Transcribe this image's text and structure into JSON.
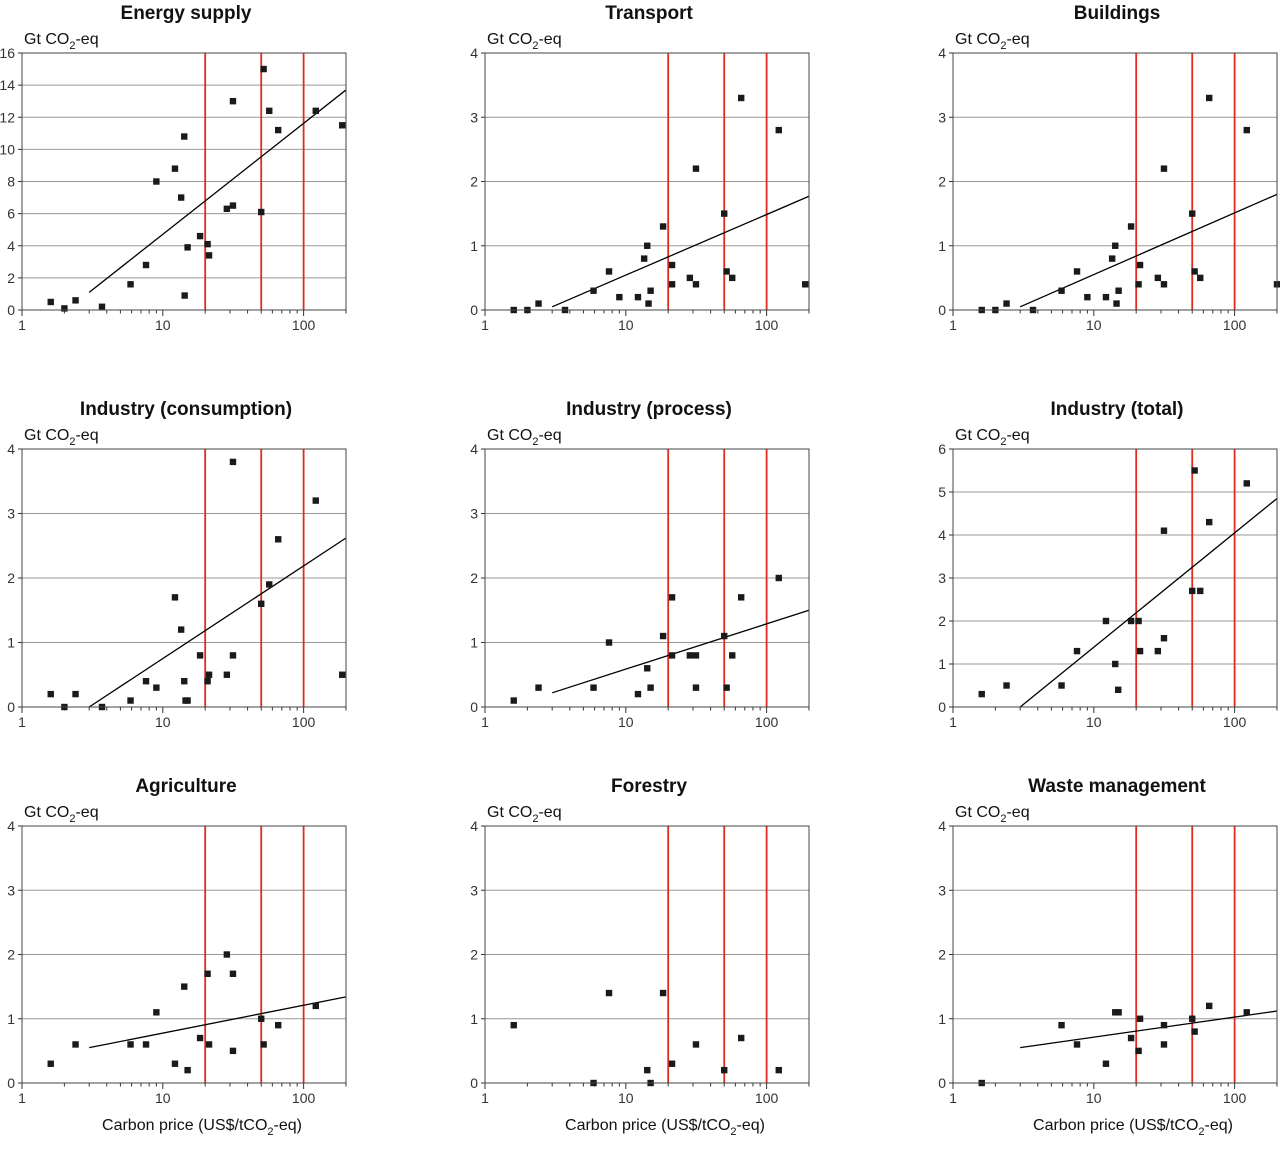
{
  "x_axis_label": "Carbon price (US$/tCO",
  "x_axis_label_sub": "2",
  "x_axis_label_end": "-eq)",
  "y_unit_prefix": "Gt CO",
  "y_unit_sub": "2",
  "y_unit_suffix": "-eq",
  "colors": {
    "reference_line": "#e02b20",
    "grid": "#999999",
    "point": "#1a1a1a",
    "trend": "#000000"
  },
  "chart_data": [
    {
      "type": "scatter",
      "title": "Energy supply",
      "xscale": "log",
      "xlim": [
        1,
        200
      ],
      "ylim": [
        0,
        16
      ],
      "yticks": [
        0,
        2,
        4,
        6,
        8,
        10,
        12,
        14,
        16
      ],
      "xticks": [
        1,
        10,
        100
      ],
      "reference_lines_x": [
        20,
        50,
        100
      ],
      "points": [
        [
          1.6,
          0.5
        ],
        [
          2.0,
          0.1
        ],
        [
          2.4,
          0.6
        ],
        [
          3.7,
          0.2
        ],
        [
          5.9,
          1.6
        ],
        [
          7.6,
          2.8
        ],
        [
          9.0,
          8.0
        ],
        [
          12.2,
          8.8
        ],
        [
          13.5,
          7.0
        ],
        [
          14.2,
          10.8
        ],
        [
          14.3,
          0.9
        ],
        [
          15.0,
          3.9
        ],
        [
          18.4,
          4.6
        ],
        [
          20.8,
          4.1
        ],
        [
          21.3,
          3.4
        ],
        [
          28.5,
          6.3
        ],
        [
          31.5,
          6.5
        ],
        [
          31.5,
          13.0
        ],
        [
          50,
          6.1
        ],
        [
          52,
          15.0
        ],
        [
          57,
          12.4
        ],
        [
          66,
          11.2
        ],
        [
          122,
          12.4
        ],
        [
          188,
          11.5
        ]
      ],
      "trend": [
        [
          3,
          1.1
        ],
        [
          200,
          13.7
        ]
      ]
    },
    {
      "type": "scatter",
      "title": "Transport",
      "xscale": "log",
      "xlim": [
        1,
        200
      ],
      "ylim": [
        0,
        4
      ],
      "yticks": [
        0,
        1,
        2,
        3,
        4
      ],
      "xticks": [
        1,
        10,
        100
      ],
      "reference_lines_x": [
        20,
        50,
        100
      ],
      "points": [
        [
          1.6,
          0
        ],
        [
          2.0,
          0
        ],
        [
          2.4,
          0.1
        ],
        [
          3.7,
          0
        ],
        [
          5.9,
          0.3
        ],
        [
          7.6,
          0.6
        ],
        [
          9.0,
          0.2
        ],
        [
          12.2,
          0.2
        ],
        [
          13.5,
          0.8
        ],
        [
          14.2,
          1.0
        ],
        [
          14.5,
          0.1
        ],
        [
          15.0,
          0.3
        ],
        [
          18.4,
          1.3
        ],
        [
          21.3,
          0.7
        ],
        [
          21.3,
          0.4
        ],
        [
          28.5,
          0.5
        ],
        [
          31.5,
          2.2
        ],
        [
          31.5,
          0.4
        ],
        [
          50,
          1.5
        ],
        [
          52,
          0.6
        ],
        [
          57,
          0.5
        ],
        [
          66,
          3.3
        ],
        [
          122,
          2.8
        ],
        [
          188,
          0.4
        ]
      ],
      "trend": [
        [
          3,
          0.05
        ],
        [
          200,
          1.77
        ]
      ]
    },
    {
      "type": "scatter",
      "title": "Buildings",
      "xscale": "log",
      "xlim": [
        1,
        200
      ],
      "ylim": [
        0,
        4
      ],
      "yticks": [
        0,
        1,
        2,
        3,
        4
      ],
      "xticks": [
        1,
        10,
        100
      ],
      "reference_lines_x": [
        20,
        50,
        100
      ],
      "points": [
        [
          1.6,
          0
        ],
        [
          2.0,
          0
        ],
        [
          2.4,
          0.1
        ],
        [
          3.7,
          0
        ],
        [
          5.9,
          0.3
        ],
        [
          7.6,
          0.6
        ],
        [
          9.0,
          0.2
        ],
        [
          12.2,
          0.2
        ],
        [
          13.5,
          0.8
        ],
        [
          14.2,
          1.0
        ],
        [
          14.5,
          0.1
        ],
        [
          15.0,
          0.3
        ],
        [
          18.4,
          1.3
        ],
        [
          20.8,
          0.4
        ],
        [
          21.3,
          0.7
        ],
        [
          28.5,
          0.5
        ],
        [
          31.5,
          2.2
        ],
        [
          31.5,
          0.4
        ],
        [
          50,
          1.5
        ],
        [
          52,
          0.6
        ],
        [
          57,
          0.5
        ],
        [
          66,
          3.3
        ],
        [
          122,
          2.8
        ],
        [
          200,
          0.4
        ]
      ],
      "trend": [
        [
          3,
          0.05
        ],
        [
          200,
          1.8
        ]
      ]
    },
    {
      "type": "scatter",
      "title": "Industry (consumption)",
      "xscale": "log",
      "xlim": [
        1,
        200
      ],
      "ylim": [
        0,
        4
      ],
      "yticks": [
        0,
        1,
        2,
        3,
        4
      ],
      "xticks": [
        1,
        10,
        100
      ],
      "reference_lines_x": [
        20,
        50,
        100
      ],
      "points": [
        [
          1.6,
          0.2
        ],
        [
          2.0,
          0
        ],
        [
          2.4,
          0.2
        ],
        [
          3.7,
          0
        ],
        [
          5.9,
          0.1
        ],
        [
          7.6,
          0.4
        ],
        [
          9.0,
          0.3
        ],
        [
          12.2,
          1.7
        ],
        [
          13.5,
          1.2
        ],
        [
          14.2,
          0.4
        ],
        [
          14.5,
          0.1
        ],
        [
          15.0,
          0.1
        ],
        [
          18.4,
          0.8
        ],
        [
          20.8,
          0.4
        ],
        [
          21.3,
          0.5
        ],
        [
          28.5,
          0.5
        ],
        [
          31.5,
          3.8
        ],
        [
          31.5,
          0.8
        ],
        [
          50,
          1.6
        ],
        [
          57,
          1.9
        ],
        [
          66,
          2.6
        ],
        [
          122,
          3.2
        ],
        [
          188,
          0.5
        ]
      ],
      "trend": [
        [
          3,
          0
        ],
        [
          200,
          2.62
        ]
      ]
    },
    {
      "type": "scatter",
      "title": "Industry (process)",
      "xscale": "log",
      "xlim": [
        1,
        200
      ],
      "ylim": [
        0,
        4
      ],
      "yticks": [
        0,
        1,
        2,
        3,
        4
      ],
      "xticks": [
        1,
        10,
        100
      ],
      "reference_lines_x": [
        20,
        50,
        100
      ],
      "points": [
        [
          1.6,
          0.1
        ],
        [
          2.4,
          0.3
        ],
        [
          5.9,
          0.3
        ],
        [
          7.6,
          1.0
        ],
        [
          12.2,
          0.2
        ],
        [
          14.2,
          0.6
        ],
        [
          15.0,
          0.3
        ],
        [
          18.4,
          1.1
        ],
        [
          21.3,
          1.7
        ],
        [
          21.3,
          0.8
        ],
        [
          28.5,
          0.8
        ],
        [
          31.5,
          0.8
        ],
        [
          31.5,
          0.3
        ],
        [
          50,
          1.1
        ],
        [
          52,
          0.3
        ],
        [
          57,
          0.8
        ],
        [
          66,
          1.7
        ],
        [
          122,
          2.0
        ]
      ],
      "trend": [
        [
          3,
          0.22
        ],
        [
          200,
          1.5
        ]
      ]
    },
    {
      "type": "scatter",
      "title": "Industry (total)",
      "xscale": "log",
      "xlim": [
        1,
        200
      ],
      "ylim": [
        0,
        6
      ],
      "yticks": [
        0,
        1,
        2,
        3,
        4,
        5,
        6
      ],
      "xticks": [
        1,
        10,
        100
      ],
      "reference_lines_x": [
        20,
        50,
        100
      ],
      "points": [
        [
          1.6,
          0.3
        ],
        [
          2.4,
          0.5
        ],
        [
          5.9,
          0.5
        ],
        [
          7.6,
          1.3
        ],
        [
          12.2,
          2.0
        ],
        [
          14.2,
          1.0
        ],
        [
          14.9,
          0.4
        ],
        [
          18.4,
          2.0
        ],
        [
          20.8,
          2.0
        ],
        [
          21.3,
          1.3
        ],
        [
          28.5,
          1.3
        ],
        [
          31.5,
          4.1
        ],
        [
          31.5,
          1.6
        ],
        [
          50,
          2.7
        ],
        [
          52,
          5.5
        ],
        [
          57,
          2.7
        ],
        [
          66,
          4.3
        ],
        [
          122,
          5.2
        ]
      ],
      "trend": [
        [
          3,
          0
        ],
        [
          200,
          4.85
        ]
      ]
    },
    {
      "type": "scatter",
      "title": "Agriculture",
      "xscale": "log",
      "xlim": [
        1,
        200
      ],
      "ylim": [
        0,
        4
      ],
      "yticks": [
        0,
        1,
        2,
        3,
        4
      ],
      "xticks": [
        1,
        10,
        100
      ],
      "reference_lines_x": [
        20,
        50,
        100
      ],
      "points": [
        [
          1.6,
          0.3
        ],
        [
          2.4,
          0.6
        ],
        [
          5.9,
          0.6
        ],
        [
          7.6,
          0.6
        ],
        [
          9.0,
          1.1
        ],
        [
          12.2,
          0.3
        ],
        [
          14.2,
          1.5
        ],
        [
          15.0,
          0.2
        ],
        [
          18.4,
          0.7
        ],
        [
          20.8,
          1.7
        ],
        [
          21.3,
          0.6
        ],
        [
          28.5,
          2.0
        ],
        [
          31.5,
          1.7
        ],
        [
          31.5,
          0.5
        ],
        [
          50,
          1.0
        ],
        [
          52,
          0.6
        ],
        [
          66,
          0.9
        ],
        [
          122,
          1.2
        ]
      ],
      "trend": [
        [
          3,
          0.55
        ],
        [
          200,
          1.34
        ]
      ]
    },
    {
      "type": "scatter",
      "title": "Forestry",
      "xscale": "log",
      "xlim": [
        1,
        200
      ],
      "ylim": [
        0,
        4
      ],
      "yticks": [
        0,
        1,
        2,
        3,
        4
      ],
      "xticks": [
        1,
        10,
        100
      ],
      "reference_lines_x": [
        20,
        50,
        100
      ],
      "points": [
        [
          1.6,
          0.9
        ],
        [
          5.9,
          0
        ],
        [
          7.6,
          1.4
        ],
        [
          14.2,
          0.2
        ],
        [
          15.0,
          0
        ],
        [
          18.4,
          1.4
        ],
        [
          21.3,
          0.3
        ],
        [
          31.5,
          0.6
        ],
        [
          50,
          0.2
        ],
        [
          66,
          0.7
        ],
        [
          122,
          0.2
        ]
      ],
      "trend": null
    },
    {
      "type": "scatter",
      "title": "Waste management",
      "xscale": "log",
      "xlim": [
        1,
        200
      ],
      "ylim": [
        0,
        4
      ],
      "yticks": [
        0,
        1,
        2,
        3,
        4
      ],
      "xticks": [
        1,
        10,
        100
      ],
      "reference_lines_x": [
        20,
        50,
        100
      ],
      "points": [
        [
          1.6,
          0
        ],
        [
          5.9,
          0.9
        ],
        [
          7.6,
          0.6
        ],
        [
          12.2,
          0.3
        ],
        [
          14.2,
          1.1
        ],
        [
          15.0,
          1.1
        ],
        [
          18.4,
          0.7
        ],
        [
          20.8,
          0.5
        ],
        [
          21.3,
          1.0
        ],
        [
          31.5,
          0.9
        ],
        [
          31.5,
          0.6
        ],
        [
          50,
          1.0
        ],
        [
          52,
          0.8
        ],
        [
          66,
          1.2
        ],
        [
          122,
          1.1
        ]
      ],
      "trend": [
        [
          3,
          0.55
        ],
        [
          200,
          1.12
        ]
      ]
    }
  ]
}
